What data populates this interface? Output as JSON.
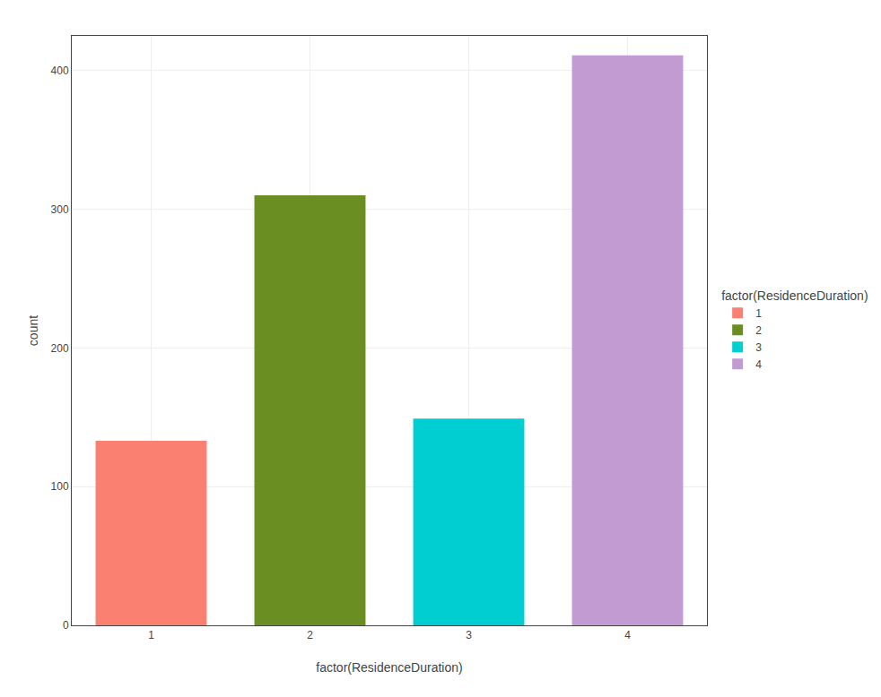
{
  "chart_data": {
    "type": "bar",
    "categories": [
      "1",
      "2",
      "3",
      "4"
    ],
    "values": [
      133,
      310,
      149,
      411
    ],
    "colors": [
      "#FA8072",
      "#6B8E23",
      "#00CED1",
      "#C39BD3"
    ],
    "xlabel": "factor(ResidenceDuration)",
    "ylabel": "count",
    "legend_title": "factor(ResidenceDuration)",
    "legend": "right",
    "ylim": [
      0,
      425
    ],
    "yticks": [
      0,
      100,
      200,
      300,
      400
    ],
    "grid": true
  }
}
